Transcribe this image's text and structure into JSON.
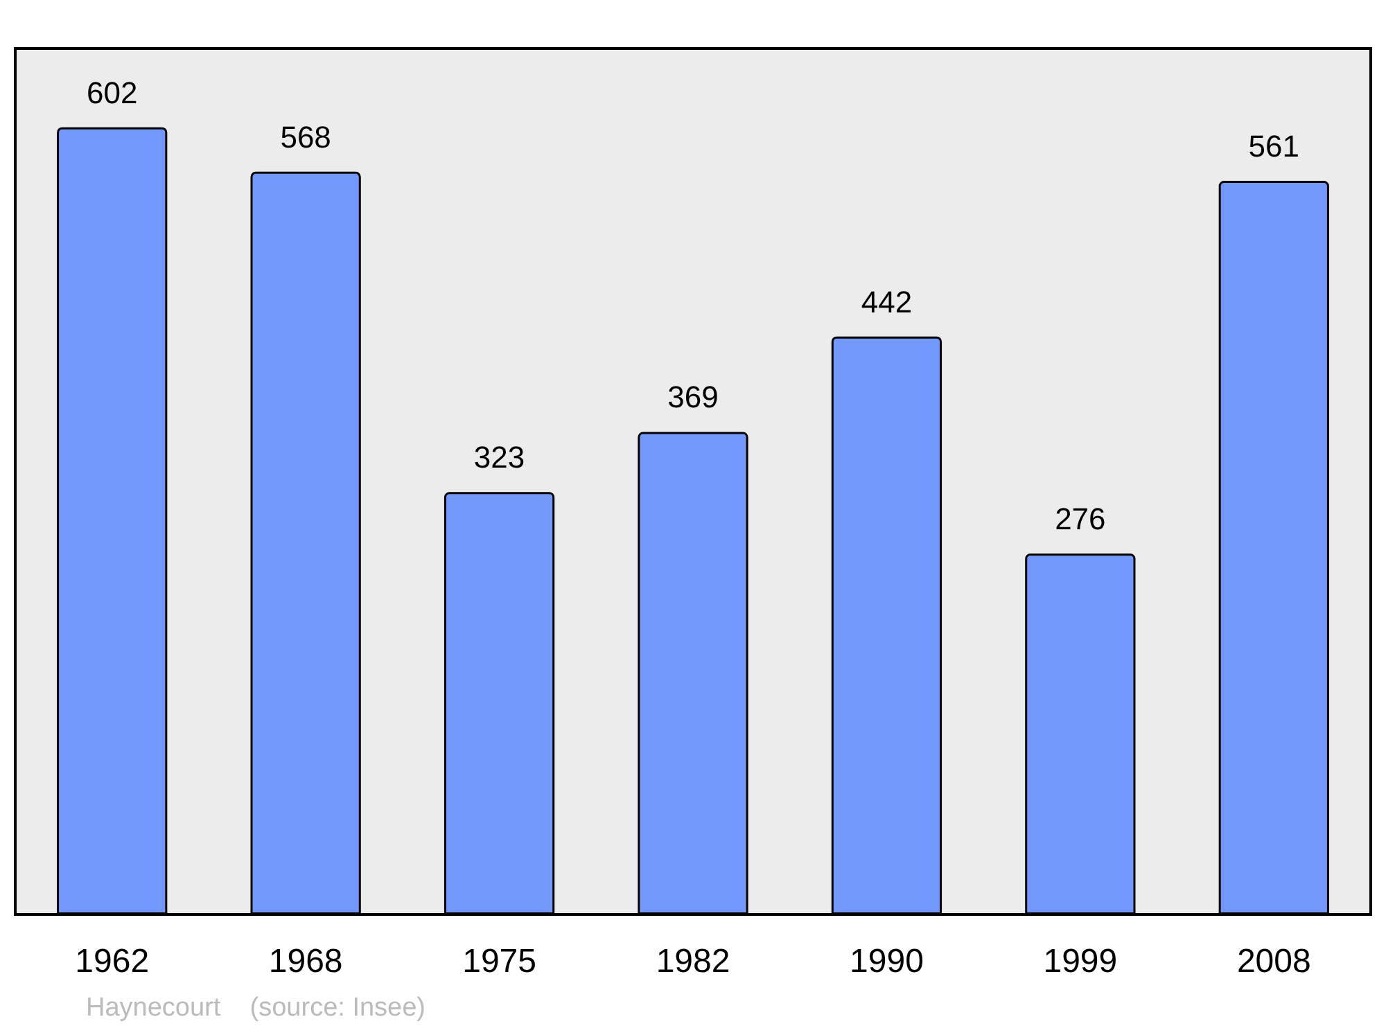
{
  "chart_data": {
    "type": "bar",
    "categories": [
      "1962",
      "1968",
      "1975",
      "1982",
      "1990",
      "1999",
      "2008"
    ],
    "values": [
      602,
      568,
      323,
      369,
      442,
      276,
      561
    ],
    "color": "#7399ff",
    "data_labels": true,
    "annotations": [
      "Haynecourt    (source: Insee)"
    ]
  }
}
